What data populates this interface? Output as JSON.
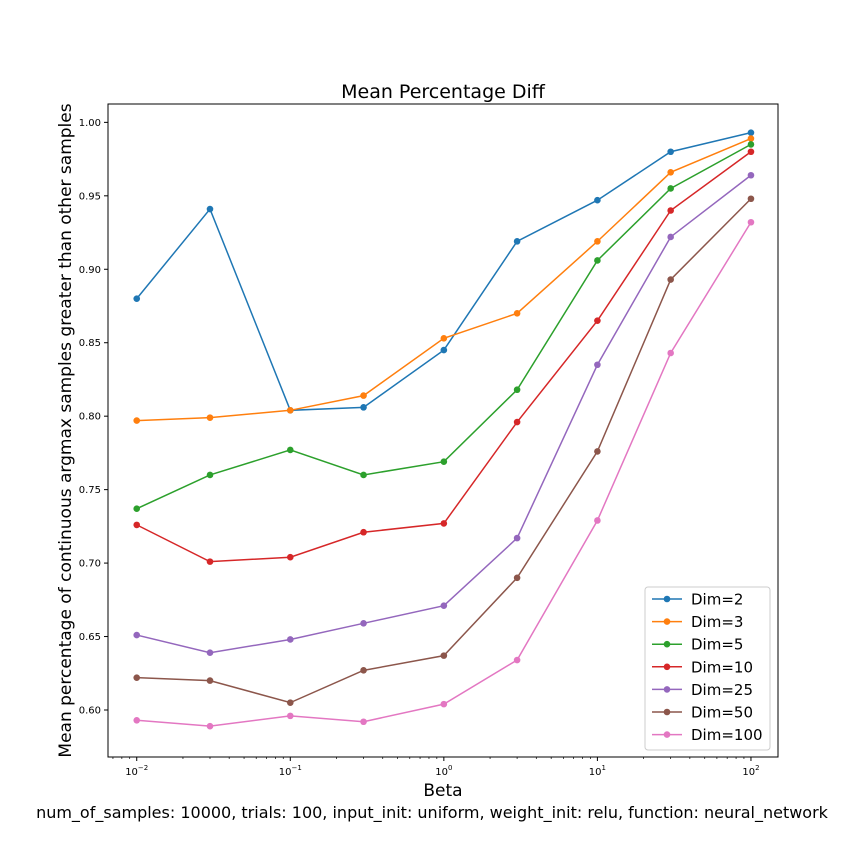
{
  "chart_data": {
    "type": "line",
    "title": "Mean Percentage Diff",
    "xlabel": "Beta",
    "ylabel": "Mean percentage of continuous argmax samples greater than other samples",
    "xscale": "log",
    "xlim": [
      0.0065,
      150
    ],
    "ylim": [
      0.568,
      1.0125
    ],
    "x": [
      0.01,
      0.03,
      0.1,
      0.3,
      1,
      3,
      10,
      30,
      100
    ],
    "x_ticks": [
      {
        "value": 0.01,
        "base": "10",
        "exp": "−2"
      },
      {
        "value": 0.1,
        "base": "10",
        "exp": "−1"
      },
      {
        "value": 1,
        "base": "10",
        "exp": "0"
      },
      {
        "value": 10,
        "base": "10",
        "exp": "1"
      },
      {
        "value": 100,
        "base": "10",
        "exp": "2"
      }
    ],
    "y_ticks": [
      {
        "value": 0.6,
        "label": "0.60"
      },
      {
        "value": 0.65,
        "label": "0.65"
      },
      {
        "value": 0.7,
        "label": "0.70"
      },
      {
        "value": 0.75,
        "label": "0.75"
      },
      {
        "value": 0.8,
        "label": "0.80"
      },
      {
        "value": 0.85,
        "label": "0.85"
      },
      {
        "value": 0.9,
        "label": "0.90"
      },
      {
        "value": 0.95,
        "label": "0.95"
      },
      {
        "value": 1.0,
        "label": "1.00"
      }
    ],
    "grid": false,
    "legend_position": "lower-right",
    "series": [
      {
        "name": "Dim=2",
        "color": "#1f77b4",
        "values": [
          0.88,
          0.941,
          0.804,
          0.806,
          0.845,
          0.919,
          0.947,
          0.98,
          0.993
        ]
      },
      {
        "name": "Dim=3",
        "color": "#ff7f0e",
        "values": [
          0.797,
          0.799,
          0.804,
          0.814,
          0.853,
          0.87,
          0.919,
          0.966,
          0.989
        ]
      },
      {
        "name": "Dim=5",
        "color": "#2ca02c",
        "values": [
          0.737,
          0.76,
          0.777,
          0.76,
          0.769,
          0.818,
          0.906,
          0.955,
          0.985
        ]
      },
      {
        "name": "Dim=10",
        "color": "#d62728",
        "values": [
          0.726,
          0.701,
          0.704,
          0.721,
          0.727,
          0.796,
          0.865,
          0.94,
          0.98
        ]
      },
      {
        "name": "Dim=25",
        "color": "#9467bd",
        "values": [
          0.651,
          0.639,
          0.648,
          0.659,
          0.671,
          0.717,
          0.835,
          0.922,
          0.964
        ]
      },
      {
        "name": "Dim=50",
        "color": "#8c564b",
        "values": [
          0.622,
          0.62,
          0.605,
          0.627,
          0.637,
          0.69,
          0.776,
          0.893,
          0.948
        ]
      },
      {
        "name": "Dim=100",
        "color": "#e377c2",
        "values": [
          0.593,
          0.589,
          0.596,
          0.592,
          0.604,
          0.634,
          0.729,
          0.843,
          0.932
        ]
      }
    ]
  },
  "caption": "num_of_samples: 10000, trials: 100, input_init: uniform, weight_init: relu, function: neural_network"
}
